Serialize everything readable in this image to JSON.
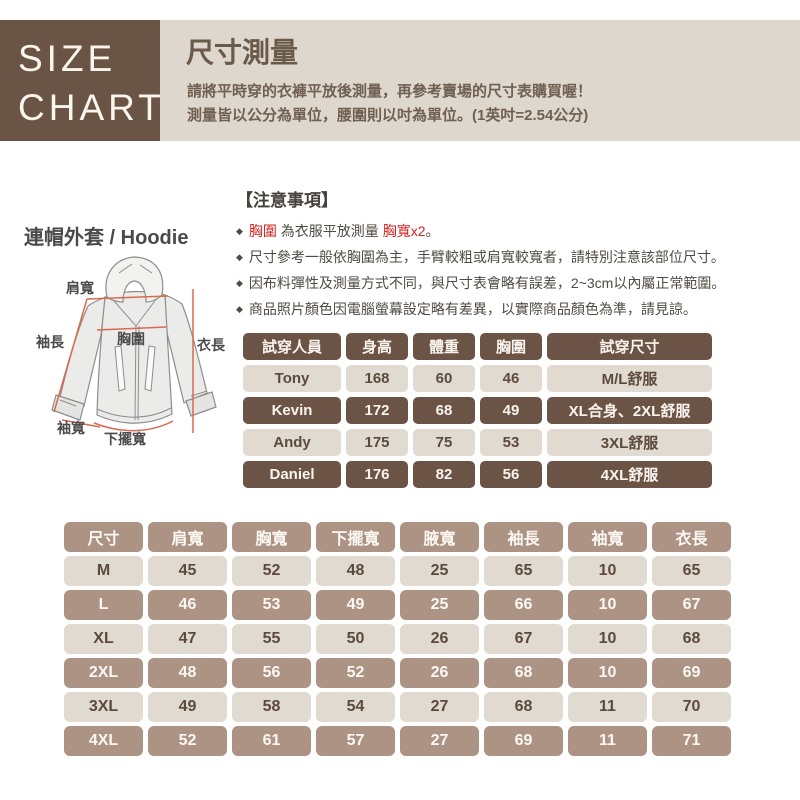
{
  "brand": {
    "line1": "SIZE",
    "line2": "CHART"
  },
  "header": {
    "title": "尺寸測量",
    "desc1": "請將平時穿的衣褲平放後測量，再參考賣場的尺寸表購買喔！",
    "desc2": "測量皆以公分為單位，腰圍則以吋為單位。(1英吋=2.54公分)"
  },
  "product": {
    "title": "連帽外套 / Hoodie"
  },
  "diagram": {
    "labels": {
      "shoulder": "肩寬",
      "sleeve_length": "袖長",
      "chest": "胸圍",
      "length": "衣長",
      "sleeve_width": "袖寬",
      "hem_width": "下擺寬"
    }
  },
  "notes": {
    "title": "【注意事項】",
    "bullet_char": "◆",
    "items": [
      {
        "parts": [
          {
            "t": "胸圍",
            "red": true
          },
          {
            "t": " 為衣服平放測量 ",
            "red": false
          },
          {
            "t": "胸寬x2",
            "red": true
          },
          {
            "t": "。",
            "red": false
          }
        ]
      },
      {
        "parts": [
          {
            "t": "尺寸參考一般依胸圍為主，手臂較粗或肩寬較寬者，請特別注意該部位尺寸。",
            "red": false
          }
        ]
      },
      {
        "parts": [
          {
            "t": "因布料彈性及測量方式不同，與尺寸表會略有誤差，2~3cm以內屬正常範圍。",
            "red": false
          }
        ]
      },
      {
        "parts": [
          {
            "t": "商品照片顏色因電腦螢幕設定略有差異，以實際商品顏色為準，請見諒。",
            "red": false
          }
        ]
      }
    ]
  },
  "fit_table": {
    "header_variant": "dark",
    "headers": [
      "試穿人員",
      "身高",
      "體重",
      "胸圍",
      "試穿尺寸"
    ],
    "rows": [
      {
        "variant": "light",
        "cells": [
          "Tony",
          "168",
          "60",
          "46",
          "M/L舒服"
        ]
      },
      {
        "variant": "dark",
        "cells": [
          "Kevin",
          "172",
          "68",
          "49",
          "XL合身、2XL舒服"
        ]
      },
      {
        "variant": "light",
        "cells": [
          "Andy",
          "175",
          "75",
          "53",
          "3XL舒服"
        ]
      },
      {
        "variant": "dark",
        "cells": [
          "Daniel",
          "176",
          "82",
          "56",
          "4XL舒服"
        ]
      }
    ]
  },
  "size_table": {
    "header_variant": "taupe",
    "headers": [
      "尺寸",
      "肩寬",
      "胸寬",
      "下擺寬",
      "腋寬",
      "袖長",
      "袖寬",
      "衣長"
    ],
    "rows": [
      {
        "variant": "light",
        "cells": [
          "M",
          "45",
          "52",
          "48",
          "25",
          "65",
          "10",
          "65"
        ]
      },
      {
        "variant": "taupe",
        "cells": [
          "L",
          "46",
          "53",
          "49",
          "25",
          "66",
          "10",
          "67"
        ]
      },
      {
        "variant": "light",
        "cells": [
          "XL",
          "47",
          "55",
          "50",
          "26",
          "67",
          "10",
          "68"
        ]
      },
      {
        "variant": "taupe",
        "cells": [
          "2XL",
          "48",
          "56",
          "52",
          "26",
          "68",
          "10",
          "69"
        ]
      },
      {
        "variant": "light",
        "cells": [
          "3XL",
          "49",
          "58",
          "54",
          "27",
          "68",
          "11",
          "70"
        ]
      },
      {
        "variant": "taupe",
        "cells": [
          "4XL",
          "52",
          "61",
          "57",
          "27",
          "69",
          "11",
          "71"
        ]
      }
    ]
  },
  "colors": {
    "dark_brown": "#6a5445",
    "taupe": "#ad9384",
    "light_pill": "#e0dad1",
    "beige_strip": "#ded7cd",
    "red_text": "#d42420",
    "measure_line_red": "#d96a50"
  }
}
